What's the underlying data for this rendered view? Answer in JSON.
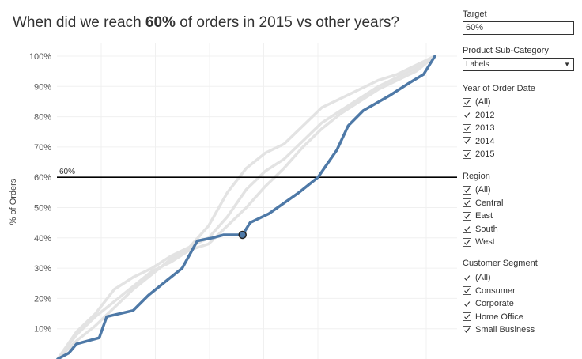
{
  "title": {
    "prefix": "When did we reach ",
    "bold": "60%",
    "suffix": " of orders in 2015 vs other years?"
  },
  "y_axis_label": "% of Orders",
  "target_line_label": "60%",
  "filters": {
    "target": {
      "label": "Target",
      "value": "60%"
    },
    "product_sub_category": {
      "label": "Product Sub-Category",
      "value": "Labels"
    },
    "year_of_order_date": {
      "label": "Year of Order Date",
      "options": [
        "(All)",
        "2012",
        "2013",
        "2014",
        "2015"
      ]
    },
    "region": {
      "label": "Region",
      "options": [
        "(All)",
        "Central",
        "East",
        "South",
        "West"
      ]
    },
    "customer_segment": {
      "label": "Customer Segment",
      "options": [
        "(All)",
        "Consumer",
        "Corporate",
        "Home Office",
        "Small Business"
      ]
    }
  },
  "colors": {
    "highlight": "#4e79a7",
    "other_years": "#e3e3e3",
    "target": "#000000"
  },
  "chart_data": {
    "type": "line",
    "title": "When did we reach 60% of orders in 2015 vs other years?",
    "ylabel": "% of Orders",
    "xlabel": "",
    "ylim": [
      0,
      100
    ],
    "xlim": [
      0,
      100
    ],
    "y_ticks": [
      "10%",
      "20%",
      "30%",
      "40%",
      "50%",
      "60%",
      "70%",
      "80%",
      "90%",
      "100%"
    ],
    "target": 60,
    "marker": {
      "x": 49,
      "y": 41
    },
    "series": [
      {
        "name": "2012",
        "x": [
          0,
          5,
          10,
          15,
          20,
          25,
          30,
          35,
          40,
          45,
          50,
          55,
          60,
          65,
          70,
          75,
          80,
          85,
          90,
          95,
          100
        ],
        "y": [
          0,
          6,
          11,
          17,
          23,
          28,
          33,
          37,
          40,
          47,
          56,
          62,
          66,
          72,
          78,
          82,
          86,
          90,
          93,
          96,
          100
        ]
      },
      {
        "name": "2013",
        "x": [
          0,
          5,
          10,
          15,
          20,
          25,
          30,
          35,
          40,
          45,
          50,
          55,
          60,
          65,
          70,
          75,
          80,
          85,
          90,
          95,
          100
        ],
        "y": [
          0,
          9,
          15,
          23,
          27,
          30,
          34,
          37,
          44,
          55,
          63,
          68,
          71,
          77,
          83,
          86,
          89,
          92,
          94,
          97,
          100
        ]
      },
      {
        "name": "2014",
        "x": [
          0,
          5,
          10,
          15,
          20,
          25,
          30,
          35,
          40,
          45,
          50,
          55,
          60,
          65,
          70,
          75,
          80,
          85,
          90,
          95,
          100
        ],
        "y": [
          0,
          8,
          14,
          19,
          24,
          29,
          32,
          36,
          38,
          44,
          50,
          57,
          63,
          70,
          76,
          81,
          85,
          89,
          92,
          95,
          100
        ]
      },
      {
        "name": "2015",
        "x": [
          0,
          3,
          5,
          11,
          13,
          20,
          24,
          29,
          33,
          37,
          41,
          44,
          49,
          51,
          56,
          64,
          69,
          74,
          77,
          81,
          88,
          93,
          97,
          100
        ],
        "y": [
          0,
          2,
          5,
          7,
          14,
          16,
          21,
          26,
          30,
          39,
          40,
          41,
          41,
          45,
          48,
          55,
          60,
          69,
          77,
          82,
          87,
          91,
          94,
          100
        ]
      }
    ]
  }
}
